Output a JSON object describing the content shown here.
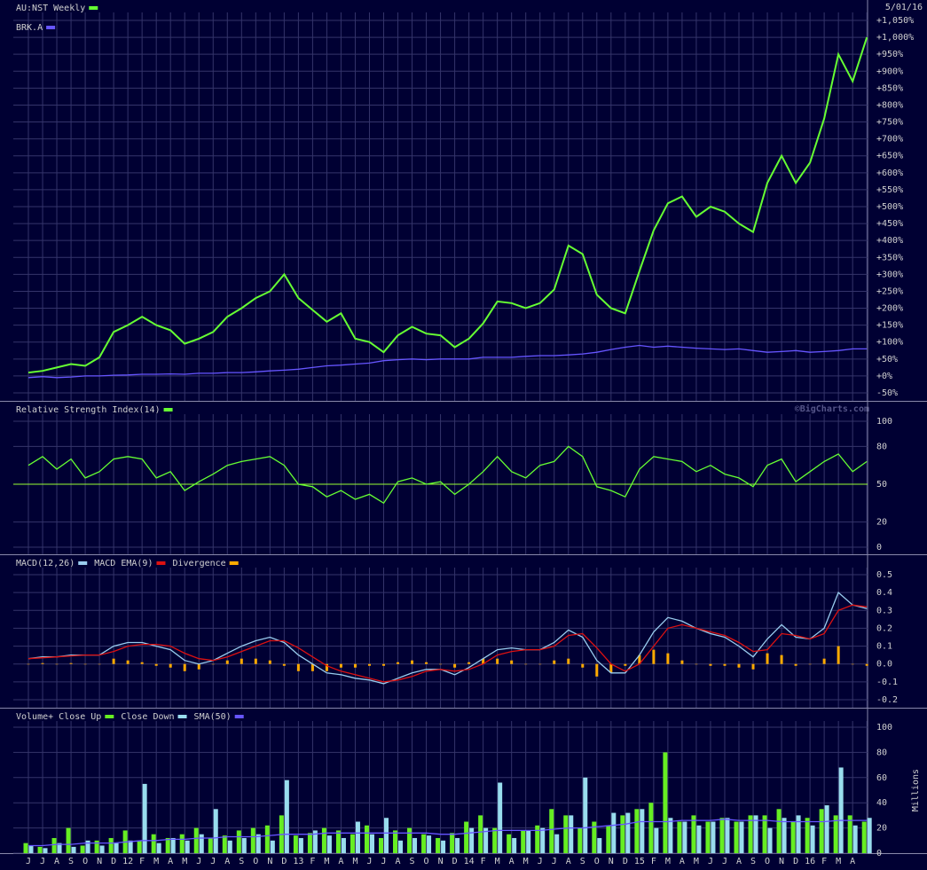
{
  "chart_data": [
    {
      "type": "line",
      "date": "5/01/16",
      "watermark": "©BigCharts.com",
      "legend_layout": "rows",
      "grid": true,
      "ylim": [
        -50,
        1050
      ],
      "yticks": [
        {
          "value": -50,
          "label": "-50%"
        },
        {
          "value": 0,
          "label": "+0%"
        },
        {
          "value": 50,
          "label": "+50%"
        },
        {
          "value": 100,
          "label": "+100%"
        },
        {
          "value": 150,
          "label": "+150%"
        },
        {
          "value": 200,
          "label": "+200%"
        },
        {
          "value": 250,
          "label": "+250%"
        },
        {
          "value": 300,
          "label": "+300%"
        },
        {
          "value": 350,
          "label": "+350%"
        },
        {
          "value": 400,
          "label": "+400%"
        },
        {
          "value": 450,
          "label": "+450%"
        },
        {
          "value": 500,
          "label": "+500%"
        },
        {
          "value": 550,
          "label": "+550%"
        },
        {
          "value": 600,
          "label": "+600%"
        },
        {
          "value": 650,
          "label": "+650%"
        },
        {
          "value": 700,
          "label": "+700%"
        },
        {
          "value": 750,
          "label": "+750%"
        },
        {
          "value": 800,
          "label": "+800%"
        },
        {
          "value": 850,
          "label": "+850%"
        },
        {
          "value": 900,
          "label": "+900%"
        },
        {
          "value": 950,
          "label": "+950%"
        },
        {
          "value": 1000,
          "label": "+1,000%"
        },
        {
          "value": 1050,
          "label": "+1,050%"
        }
      ],
      "series": [
        {
          "name": "AU:NST Weekly",
          "color": "#66ff33",
          "values": [
            10,
            15,
            25,
            35,
            30,
            55,
            130,
            150,
            175,
            150,
            135,
            95,
            110,
            130,
            175,
            200,
            230,
            250,
            300,
            230,
            195,
            160,
            185,
            110,
            100,
            70,
            120,
            145,
            125,
            120,
            85,
            110,
            155,
            220,
            215,
            200,
            215,
            255,
            385,
            360,
            240,
            200,
            185,
            310,
            430,
            510,
            530,
            470,
            500,
            485,
            450,
            425,
            570,
            650,
            570,
            630,
            760,
            950,
            870,
            1000
          ]
        },
        {
          "name": "BRK.A",
          "color": "#6655ff",
          "values": [
            -5,
            -2,
            -5,
            -3,
            0,
            0,
            2,
            3,
            5,
            5,
            6,
            5,
            8,
            8,
            10,
            10,
            12,
            15,
            17,
            20,
            25,
            30,
            32,
            35,
            38,
            45,
            48,
            50,
            48,
            50,
            50,
            50,
            55,
            55,
            55,
            58,
            60,
            60,
            62,
            65,
            70,
            78,
            85,
            90,
            85,
            88,
            85,
            82,
            80,
            78,
            80,
            75,
            70,
            72,
            75,
            70,
            72,
            75,
            80,
            80
          ]
        }
      ]
    },
    {
      "type": "line",
      "legend_layout": "inline",
      "grid": true,
      "reference_line": 50,
      "reference_color": "#99ff33",
      "ylim": [
        0,
        100
      ],
      "yticks": [
        0,
        20,
        50,
        80,
        100
      ],
      "series": [
        {
          "name": "Relative Strength Index(14)",
          "color": "#66ff33",
          "values": [
            65,
            72,
            62,
            70,
            55,
            60,
            70,
            72,
            70,
            55,
            60,
            45,
            52,
            58,
            65,
            68,
            70,
            72,
            65,
            50,
            48,
            40,
            45,
            38,
            42,
            35,
            52,
            55,
            50,
            52,
            42,
            50,
            60,
            72,
            60,
            55,
            65,
            68,
            80,
            72,
            48,
            45,
            40,
            62,
            72,
            70,
            68,
            60,
            65,
            58,
            55,
            48,
            65,
            70,
            52,
            60,
            68,
            74,
            60,
            68
          ]
        }
      ]
    },
    {
      "type": "line",
      "legend_layout": "inline",
      "grid": true,
      "ylim": [
        -0.2,
        0.5
      ],
      "yticks": [
        -0.2,
        -0.1,
        {
          "value": 0,
          "label": "0.0"
        },
        0.1,
        0.2,
        0.3,
        0.4,
        0.5
      ],
      "series": [
        {
          "name": "MACD(12,26)",
          "color": "#99ccee",
          "style": "line",
          "values": [
            0.03,
            0.04,
            0.04,
            0.05,
            0.05,
            0.05,
            0.1,
            0.12,
            0.12,
            0.1,
            0.08,
            0.02,
            0,
            0.02,
            0.06,
            0.1,
            0.13,
            0.15,
            0.12,
            0.05,
            0,
            -0.05,
            -0.06,
            -0.08,
            -0.09,
            -0.11,
            -0.08,
            -0.05,
            -0.03,
            -0.03,
            -0.06,
            -0.02,
            0.03,
            0.08,
            0.09,
            0.08,
            0.08,
            0.12,
            0.19,
            0.15,
            0.02,
            -0.05,
            -0.05,
            0.05,
            0.18,
            0.26,
            0.24,
            0.2,
            0.17,
            0.15,
            0.1,
            0.04,
            0.14,
            0.22,
            0.15,
            0.14,
            0.2,
            0.4,
            0.33,
            0.31
          ]
        },
        {
          "name": "MACD EMA(9)",
          "color": "#dd1111",
          "style": "line",
          "values": [
            0.03,
            0.035,
            0.04,
            0.045,
            0.05,
            0.05,
            0.07,
            0.1,
            0.11,
            0.11,
            0.1,
            0.06,
            0.03,
            0.02,
            0.04,
            0.07,
            0.1,
            0.13,
            0.13,
            0.09,
            0.04,
            -0.01,
            -0.04,
            -0.06,
            -0.08,
            -0.1,
            -0.09,
            -0.07,
            -0.04,
            -0.03,
            -0.04,
            -0.03,
            0,
            0.05,
            0.07,
            0.08,
            0.08,
            0.1,
            0.16,
            0.17,
            0.09,
            0,
            -0.04,
            0,
            0.1,
            0.2,
            0.22,
            0.2,
            0.18,
            0.16,
            0.12,
            0.07,
            0.08,
            0.17,
            0.16,
            0.14,
            0.17,
            0.3,
            0.33,
            0.32
          ]
        },
        {
          "name": "Divergence",
          "color": "#ffaa00",
          "style": "bar",
          "values": [
            0,
            0.005,
            0,
            0.005,
            0,
            0,
            0.03,
            0.02,
            0.01,
            -0.01,
            -0.02,
            -0.04,
            -0.03,
            0,
            0.02,
            0.03,
            0.03,
            0.02,
            -0.01,
            -0.04,
            -0.04,
            -0.04,
            -0.02,
            -0.02,
            -0.01,
            -0.01,
            0.01,
            0.02,
            0.01,
            0,
            -0.02,
            0.01,
            0.03,
            0.03,
            0.02,
            0,
            0,
            0.02,
            0.03,
            -0.02,
            -0.07,
            -0.05,
            -0.01,
            0.05,
            0.08,
            0.06,
            0.02,
            0,
            -0.01,
            -0.01,
            -0.02,
            -0.03,
            0.06,
            0.05,
            -0.01,
            0,
            0.03,
            0.1,
            0,
            -0.01
          ]
        }
      ]
    },
    {
      "type": "bar",
      "title": "Volume+",
      "legend_layout": "inline",
      "grid": true,
      "y_label": "Millions",
      "ylim": [
        0,
        100
      ],
      "yticks": [
        0,
        20,
        40,
        60,
        80,
        100
      ],
      "categories": [
        "J",
        "J",
        "A",
        "S",
        "O",
        "N",
        "D",
        "12",
        "F",
        "M",
        "A",
        "M",
        "J",
        "J",
        "A",
        "S",
        "O",
        "N",
        "D",
        "13",
        "F",
        "M",
        "A",
        "M",
        "J",
        "J",
        "A",
        "S",
        "O",
        "N",
        "D",
        "14",
        "F",
        "M",
        "A",
        "M",
        "J",
        "J",
        "A",
        "S",
        "O",
        "N",
        "D",
        "15",
        "F",
        "M",
        "A",
        "M",
        "J",
        "J",
        "A",
        "S",
        "O",
        "N",
        "D",
        "16",
        "F",
        "M",
        "A",
        null
      ],
      "series": [
        {
          "name": "Close Up",
          "color": "#66ee22",
          "style": "bar",
          "values": [
            8,
            5,
            12,
            20,
            6,
            10,
            12,
            18,
            10,
            15,
            12,
            15,
            20,
            12,
            14,
            18,
            20,
            22,
            30,
            14,
            16,
            20,
            18,
            15,
            22,
            12,
            18,
            20,
            15,
            12,
            16,
            25,
            30,
            20,
            15,
            18,
            22,
            35,
            30,
            20,
            25,
            22,
            30,
            35,
            40,
            80,
            25,
            30,
            25,
            28,
            25,
            30,
            30,
            35,
            25,
            28,
            35,
            30,
            30,
            25
          ]
        },
        {
          "name": "Close Down",
          "color": "#99ddee",
          "style": "bar",
          "values": [
            6,
            4,
            8,
            5,
            10,
            6,
            8,
            10,
            55,
            8,
            12,
            10,
            15,
            35,
            10,
            12,
            15,
            10,
            58,
            12,
            18,
            14,
            12,
            25,
            15,
            28,
            10,
            12,
            14,
            10,
            12,
            20,
            20,
            56,
            12,
            18,
            20,
            15,
            30,
            60,
            12,
            32,
            32,
            35,
            20,
            28,
            25,
            22,
            25,
            28,
            25,
            30,
            20,
            28,
            30,
            22,
            38,
            68,
            22,
            28
          ]
        },
        {
          "name": "SMA(50)",
          "color": "#6655ff",
          "style": "line",
          "values": [
            6,
            6,
            7,
            7,
            8,
            8,
            8,
            9,
            10,
            10,
            11,
            11,
            12,
            12,
            13,
            13,
            13,
            14,
            15,
            15,
            15,
            16,
            16,
            16,
            16,
            16,
            16,
            16,
            16,
            15,
            15,
            16,
            17,
            18,
            18,
            18,
            18,
            19,
            20,
            20,
            21,
            22,
            23,
            25,
            25,
            25,
            26,
            26,
            26,
            27,
            26,
            26,
            26,
            25,
            25,
            25,
            25,
            26,
            26,
            26
          ]
        }
      ]
    }
  ]
}
